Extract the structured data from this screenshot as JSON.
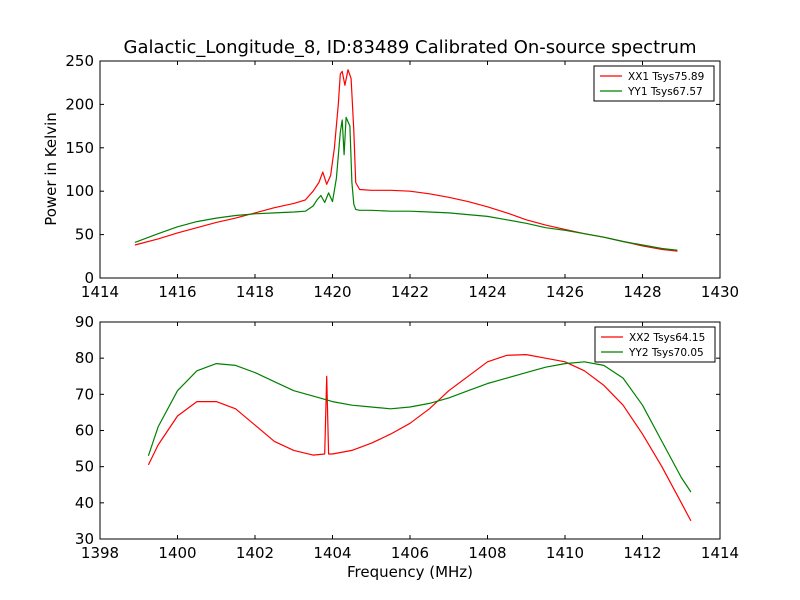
{
  "title": "Galactic_Longitude_8, ID:83489 Calibrated On-source spectrum",
  "colors": {
    "red": "#ff0000",
    "green": "#008000",
    "axis": "#000000"
  },
  "chart_data": [
    {
      "type": "line",
      "ylabel": "Power in Kelvin",
      "xlabel": "",
      "xlim": [
        1414,
        1430
      ],
      "ylim": [
        0,
        250
      ],
      "xticks": [
        1414,
        1416,
        1418,
        1420,
        1422,
        1424,
        1426,
        1428,
        1430
      ],
      "yticks": [
        0,
        50,
        100,
        150,
        200,
        250
      ],
      "legend_position": "top-right",
      "grid": false,
      "series": [
        {
          "name": "XX1 Tsys75.89",
          "color": "#ff0000",
          "x": [
            1414.9,
            1415.5,
            1416,
            1416.5,
            1417,
            1417.5,
            1418,
            1418.5,
            1419,
            1419.3,
            1419.5,
            1419.65,
            1419.75,
            1419.85,
            1419.95,
            1420.05,
            1420.15,
            1420.2,
            1420.25,
            1420.32,
            1420.4,
            1420.48,
            1420.55,
            1420.6,
            1420.7,
            1421,
            1421.5,
            1422,
            1422.5,
            1423,
            1423.5,
            1424,
            1424.5,
            1425,
            1425.5,
            1426,
            1426.5,
            1427,
            1427.5,
            1428,
            1428.5,
            1428.9
          ],
          "y": [
            38,
            45,
            52,
            58,
            64,
            69,
            75,
            81,
            86,
            90,
            100,
            110,
            122,
            108,
            118,
            150,
            200,
            235,
            238,
            222,
            240,
            230,
            170,
            110,
            102,
            101,
            101,
            100,
            97,
            93,
            88,
            82,
            75,
            67,
            61,
            56,
            51,
            47,
            42,
            37,
            33,
            31
          ]
        },
        {
          "name": "YY1 Tsys67.57",
          "color": "#008000",
          "x": [
            1414.9,
            1415.5,
            1416,
            1416.5,
            1417,
            1417.5,
            1418,
            1418.5,
            1419,
            1419.3,
            1419.5,
            1419.6,
            1419.7,
            1419.8,
            1419.9,
            1420.0,
            1420.1,
            1420.2,
            1420.25,
            1420.3,
            1420.35,
            1420.4,
            1420.45,
            1420.5,
            1420.55,
            1420.6,
            1420.7,
            1421,
            1421.5,
            1422,
            1422.5,
            1423,
            1423.5,
            1424,
            1424.5,
            1425,
            1425.5,
            1426,
            1426.5,
            1427,
            1427.5,
            1428,
            1428.5,
            1428.9
          ],
          "y": [
            41,
            51,
            59,
            65,
            69,
            72,
            74,
            75,
            76,
            77,
            83,
            90,
            95,
            87,
            98,
            88,
            115,
            168,
            182,
            142,
            185,
            180,
            175,
            110,
            85,
            79,
            78,
            78,
            77,
            77,
            76,
            75,
            73,
            71,
            67,
            63,
            58,
            55,
            51,
            47,
            42,
            38,
            34,
            32
          ]
        }
      ]
    },
    {
      "type": "line",
      "ylabel": "",
      "xlabel": "Frequency (MHz)",
      "xlim": [
        1398,
        1414
      ],
      "ylim": [
        30,
        90
      ],
      "xticks": [
        1398,
        1400,
        1402,
        1404,
        1406,
        1408,
        1410,
        1412,
        1414
      ],
      "yticks": [
        30,
        40,
        50,
        60,
        70,
        80,
        90
      ],
      "legend_position": "top-right",
      "grid": false,
      "series": [
        {
          "name": "XX2 Tsys64.15",
          "color": "#ff0000",
          "x": [
            1399.25,
            1399.5,
            1400,
            1400.5,
            1401,
            1401.5,
            1402,
            1402.5,
            1403,
            1403.5,
            1403.8,
            1403.85,
            1403.9,
            1404,
            1404.5,
            1405,
            1405.5,
            1406,
            1406.5,
            1407,
            1407.5,
            1408,
            1408.5,
            1409,
            1409.5,
            1410,
            1410.5,
            1411,
            1411.5,
            1412,
            1412.5,
            1413,
            1413.25
          ],
          "y": [
            50.5,
            56,
            64,
            68,
            68,
            66,
            61.5,
            57,
            54.5,
            53.2,
            53.5,
            75,
            53.5,
            53.5,
            54.5,
            56.5,
            59,
            62,
            66,
            71,
            75,
            79,
            80.8,
            81,
            80,
            79,
            76.5,
            72.5,
            67,
            59,
            50,
            40,
            35
          ]
        },
        {
          "name": "YY2 Tsys70.05",
          "color": "#008000",
          "x": [
            1399.25,
            1399.5,
            1400,
            1400.5,
            1401,
            1401.5,
            1402,
            1402.5,
            1403,
            1403.5,
            1404,
            1404.5,
            1405,
            1405.5,
            1406,
            1406.5,
            1407,
            1407.5,
            1408,
            1408.5,
            1409,
            1409.5,
            1410,
            1410.5,
            1411,
            1411.5,
            1412,
            1412.5,
            1413,
            1413.25
          ],
          "y": [
            53,
            61,
            71,
            76.5,
            78.5,
            78,
            76,
            73.5,
            71,
            69.5,
            68,
            67,
            66.5,
            66,
            66.5,
            67.5,
            69,
            71,
            73,
            74.5,
            76,
            77.5,
            78.5,
            79,
            78,
            74.5,
            67,
            57,
            47,
            43
          ]
        }
      ]
    }
  ]
}
